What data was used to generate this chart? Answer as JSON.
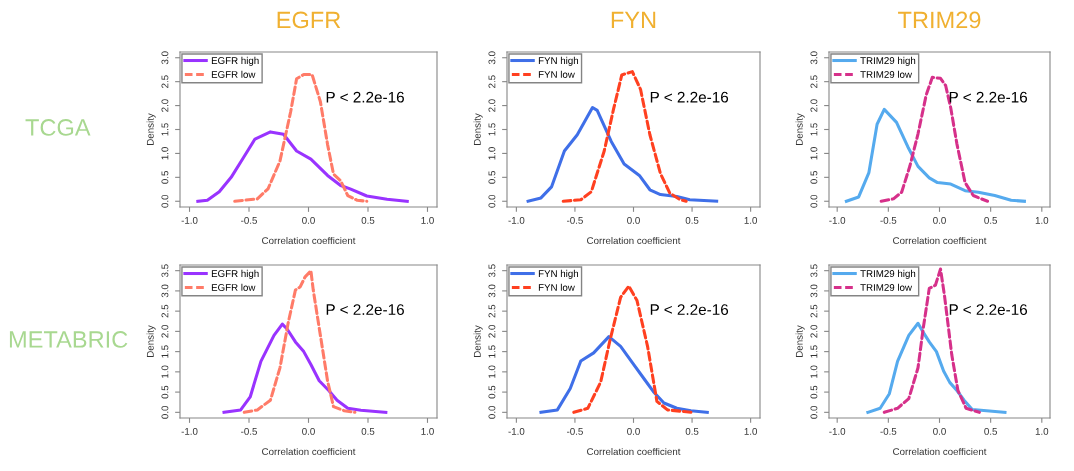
{
  "chart_data": [
    {
      "type": "line",
      "title": "EGFR",
      "xlabel": "Correlation coefficient",
      "ylabel": "Density",
      "annotations": [
        "P < 2.2e-16",
        "TCGA"
      ],
      "legend": "top left",
      "grid": false,
      "xlim": [
        -1.08,
        1.08
      ],
      "ylim": [
        -0.12,
        3.12
      ],
      "xticks": [
        {
          "value": -1,
          "label": "-1.0"
        },
        {
          "value": -0.5,
          "label": "-0.5"
        },
        {
          "value": 0,
          "label": "0.0"
        },
        {
          "value": 0.5,
          "label": "0.5"
        },
        {
          "value": 1,
          "label": "1.0"
        }
      ],
      "yticks": [
        {
          "value": 0,
          "label": "0.0"
        },
        {
          "value": 0.5,
          "label": "0.5"
        },
        {
          "value": 1,
          "label": "1.0"
        },
        {
          "value": 1.5,
          "label": "1.5"
        },
        {
          "value": 2,
          "label": "2.0"
        },
        {
          "value": 2.5,
          "label": "2.5"
        },
        {
          "value": 3,
          "label": "3.0"
        }
      ],
      "series": [
        {
          "name": "EGFR high",
          "color": "#9933ff",
          "line_style": "solid",
          "x": [
            -0.93,
            -0.85,
            -0.75,
            -0.65,
            -0.55,
            -0.45,
            -0.32,
            -0.21,
            -0.1,
            0.02,
            0.16,
            0.27,
            0.35,
            0.49,
            0.66,
            0.83
          ],
          "values": [
            0,
            0.02,
            0.2,
            0.5,
            0.9,
            1.3,
            1.45,
            1.4,
            1.05,
            0.88,
            0.54,
            0.33,
            0.26,
            0.11,
            0.04,
            0
          ]
        },
        {
          "name": "EGFR low",
          "color": "#ff7b68",
          "line_style": "dashed",
          "x": [
            -0.62,
            -0.43,
            -0.34,
            -0.24,
            -0.15,
            -0.1,
            -0.04,
            0.03,
            0.1,
            0.16,
            0.21,
            0.27,
            0.33,
            0.41,
            0.49
          ],
          "values": [
            0,
            0.05,
            0.26,
            0.84,
            1.87,
            2.56,
            2.65,
            2.65,
            2.08,
            1.19,
            0.57,
            0.43,
            0.12,
            0.02,
            0
          ]
        }
      ]
    },
    {
      "type": "line",
      "title": "FYN",
      "xlabel": "Correlation coefficient",
      "ylabel": "Density",
      "annotations": [
        "P < 2.2e-16"
      ],
      "legend": "top left",
      "grid": false,
      "xlim": [
        -1.08,
        1.08
      ],
      "ylim": [
        -0.12,
        3.12
      ],
      "xticks": [
        {
          "value": -1,
          "label": "-1.0"
        },
        {
          "value": -0.5,
          "label": "-0.5"
        },
        {
          "value": 0,
          "label": "0.0"
        },
        {
          "value": 0.5,
          "label": "0.5"
        },
        {
          "value": 1,
          "label": "1.0"
        }
      ],
      "yticks": [
        {
          "value": 0,
          "label": "0.0"
        },
        {
          "value": 0.5,
          "label": "0.5"
        },
        {
          "value": 1,
          "label": "1.0"
        },
        {
          "value": 1.5,
          "label": "1.5"
        },
        {
          "value": 2,
          "label": "2.0"
        },
        {
          "value": 2.5,
          "label": "2.5"
        },
        {
          "value": 3,
          "label": "3.0"
        }
      ],
      "series": [
        {
          "name": "FYN high",
          "color": "#3f6fe8",
          "line_style": "solid",
          "x": [
            -0.9,
            -0.79,
            -0.7,
            -0.59,
            -0.48,
            -0.35,
            -0.31,
            -0.19,
            -0.08,
            0.05,
            0.14,
            0.23,
            0.37,
            0.48,
            0.71
          ],
          "values": [
            0,
            0.07,
            0.3,
            1.05,
            1.39,
            1.96,
            1.9,
            1.25,
            0.78,
            0.54,
            0.24,
            0.14,
            0.1,
            0.03,
            0
          ]
        },
        {
          "name": "FYN low",
          "color": "#ff4020",
          "line_style": "dashed",
          "x": [
            -0.6,
            -0.45,
            -0.36,
            -0.25,
            -0.17,
            -0.1,
            -0.01,
            0.06,
            0.14,
            0.23,
            0.31,
            0.4,
            0.45
          ],
          "values": [
            0,
            0.03,
            0.2,
            1.05,
            1.93,
            2.64,
            2.71,
            2.34,
            1.39,
            0.58,
            0.17,
            0.03,
            0
          ]
        }
      ]
    },
    {
      "type": "line",
      "title": "TRIM29",
      "xlabel": "Correlation coefficient",
      "ylabel": "Density",
      "annotations": [
        "P < 2.2e-16"
      ],
      "legend": "top left",
      "grid": false,
      "xlim": [
        -1.08,
        1.08
      ],
      "ylim": [
        -0.12,
        3.12
      ],
      "xticks": [
        {
          "value": -1,
          "label": "-1.0"
        },
        {
          "value": -0.5,
          "label": "-0.5"
        },
        {
          "value": 0,
          "label": "0.0"
        },
        {
          "value": 0.5,
          "label": "0.5"
        },
        {
          "value": 1,
          "label": "1.0"
        }
      ],
      "yticks": [
        {
          "value": 0,
          "label": "0.0"
        },
        {
          "value": 0.5,
          "label": "0.5"
        },
        {
          "value": 1,
          "label": "1.0"
        },
        {
          "value": 1.5,
          "label": "1.5"
        },
        {
          "value": 2,
          "label": "2.0"
        },
        {
          "value": 2.5,
          "label": "2.5"
        },
        {
          "value": 3,
          "label": "3.0"
        }
      ],
      "series": [
        {
          "name": "TRIM29 high",
          "color": "#55aaee",
          "line_style": "solid",
          "x": [
            -0.91,
            -0.79,
            -0.69,
            -0.61,
            -0.54,
            -0.42,
            -0.31,
            -0.21,
            -0.1,
            -0.02,
            0.11,
            0.25,
            0.38,
            0.54,
            0.7,
            0.83
          ],
          "values": [
            0,
            0.09,
            0.6,
            1.61,
            1.92,
            1.65,
            1.14,
            0.73,
            0.49,
            0.39,
            0.36,
            0.22,
            0.19,
            0.12,
            0.02,
            0
          ]
        },
        {
          "name": "TRIM29 low",
          "color": "#d6308a",
          "line_style": "dashed",
          "x": [
            -0.57,
            -0.45,
            -0.37,
            -0.29,
            -0.21,
            -0.13,
            -0.07,
            0.01,
            0.06,
            0.11,
            0.17,
            0.25,
            0.33,
            0.41,
            0.47
          ],
          "values": [
            0,
            0.05,
            0.19,
            0.73,
            1.41,
            2.22,
            2.59,
            2.57,
            2.42,
            1.95,
            1.2,
            0.39,
            0.12,
            0.05,
            0
          ]
        }
      ]
    },
    {
      "type": "line",
      "xlabel": "Correlation coefficient",
      "ylabel": "Density",
      "annotations": [
        "P < 2.2e-16",
        "METABRIC"
      ],
      "legend": "top left",
      "grid": false,
      "xlim": [
        -1.08,
        1.08
      ],
      "ylim": [
        -0.14,
        3.64
      ],
      "xticks": [
        {
          "value": -1,
          "label": "-1.0"
        },
        {
          "value": -0.5,
          "label": "-0.5"
        },
        {
          "value": 0,
          "label": "0.0"
        },
        {
          "value": 0.5,
          "label": "0.5"
        },
        {
          "value": 1,
          "label": "1.0"
        }
      ],
      "yticks": [
        {
          "value": 0,
          "label": "0.0"
        },
        {
          "value": 0.5,
          "label": "0.5"
        },
        {
          "value": 1,
          "label": "1.0"
        },
        {
          "value": 1.5,
          "label": "1.5"
        },
        {
          "value": 2,
          "label": "2.0"
        },
        {
          "value": 2.5,
          "label": "2.5"
        },
        {
          "value": 3,
          "label": "3.0"
        },
        {
          "value": 3.5,
          "label": "3.5"
        }
      ],
      "series": [
        {
          "name": "EGFR high",
          "color": "#9933ff",
          "line_style": "solid",
          "x": [
            -0.71,
            -0.57,
            -0.49,
            -0.4,
            -0.29,
            -0.22,
            -0.18,
            -0.11,
            -0.04,
            0.02,
            0.09,
            0.17,
            0.24,
            0.33,
            0.44,
            0.65
          ],
          "values": [
            0,
            0.06,
            0.38,
            1.26,
            1.9,
            2.18,
            2.06,
            1.74,
            1.5,
            1.18,
            0.78,
            0.54,
            0.3,
            0.1,
            0.05,
            0
          ]
        },
        {
          "name": "EGFR low",
          "color": "#ff7b68",
          "line_style": "dashed",
          "x": [
            -0.54,
            -0.43,
            -0.32,
            -0.24,
            -0.17,
            -0.11,
            -0.07,
            -0.03,
            0.02,
            0.04,
            0.1,
            0.16,
            0.21,
            0.3,
            0.39
          ],
          "values": [
            0,
            0.06,
            0.3,
            1.1,
            2.22,
            3.02,
            3.1,
            3.34,
            3.5,
            3.02,
            1.9,
            0.78,
            0.14,
            0.04,
            0
          ]
        }
      ]
    },
    {
      "type": "line",
      "xlabel": "Correlation coefficient",
      "ylabel": "Density",
      "annotations": [
        "P < 2.2e-16"
      ],
      "legend": "top left",
      "grid": false,
      "xlim": [
        -1.08,
        1.08
      ],
      "ylim": [
        -0.14,
        3.64
      ],
      "xticks": [
        {
          "value": -1,
          "label": "-1.0"
        },
        {
          "value": -0.5,
          "label": "-0.5"
        },
        {
          "value": 0,
          "label": "0.0"
        },
        {
          "value": 0.5,
          "label": "0.5"
        },
        {
          "value": 1,
          "label": "1.0"
        }
      ],
      "yticks": [
        {
          "value": 0,
          "label": "0.0"
        },
        {
          "value": 0.5,
          "label": "0.5"
        },
        {
          "value": 1,
          "label": "1.0"
        },
        {
          "value": 1.5,
          "label": "1.5"
        },
        {
          "value": 2,
          "label": "2.0"
        },
        {
          "value": 2.5,
          "label": "2.5"
        },
        {
          "value": 3,
          "label": "3.0"
        },
        {
          "value": 3.5,
          "label": "3.5"
        }
      ],
      "series": [
        {
          "name": "FYN high",
          "color": "#3f6fe8",
          "line_style": "solid",
          "x": [
            -0.79,
            -0.65,
            -0.54,
            -0.45,
            -0.34,
            -0.21,
            -0.11,
            -0.01,
            0.09,
            0.17,
            0.26,
            0.37,
            0.49,
            0.63
          ],
          "values": [
            0,
            0.06,
            0.59,
            1.27,
            1.47,
            1.87,
            1.63,
            1.23,
            0.83,
            0.51,
            0.23,
            0.1,
            0.04,
            0
          ]
        },
        {
          "name": "FYN low",
          "color": "#ff4020",
          "line_style": "dashed",
          "x": [
            -0.51,
            -0.39,
            -0.28,
            -0.2,
            -0.11,
            -0.04,
            0.03,
            0.12,
            0.2,
            0.29,
            0.43,
            0.49
          ],
          "values": [
            0,
            0.1,
            0.75,
            1.79,
            2.84,
            3.12,
            2.76,
            1.63,
            0.27,
            0.06,
            0.02,
            0
          ]
        }
      ]
    },
    {
      "type": "line",
      "xlabel": "Correlation coefficient",
      "ylabel": "Density",
      "annotations": [
        "P < 2.2e-16"
      ],
      "legend": "top left",
      "grid": false,
      "xlim": [
        -1.08,
        1.08
      ],
      "ylim": [
        -0.14,
        3.64
      ],
      "xticks": [
        {
          "value": -1,
          "label": "-1.0"
        },
        {
          "value": -0.5,
          "label": "-0.5"
        },
        {
          "value": 0,
          "label": "0.0"
        },
        {
          "value": 0.5,
          "label": "0.5"
        },
        {
          "value": 1,
          "label": "1.0"
        }
      ],
      "yticks": [
        {
          "value": 0,
          "label": "0.0"
        },
        {
          "value": 0.5,
          "label": "0.5"
        },
        {
          "value": 1,
          "label": "1.0"
        },
        {
          "value": 1.5,
          "label": "1.5"
        },
        {
          "value": 2,
          "label": "2.0"
        },
        {
          "value": 2.5,
          "label": "2.5"
        },
        {
          "value": 3,
          "label": "3.0"
        },
        {
          "value": 3.5,
          "label": "3.5"
        }
      ],
      "series": [
        {
          "name": "TRIM29 high",
          "color": "#55aaee",
          "line_style": "solid",
          "x": [
            -0.7,
            -0.58,
            -0.49,
            -0.41,
            -0.3,
            -0.21,
            -0.16,
            -0.1,
            -0.03,
            0.04,
            0.1,
            0.17,
            0.24,
            0.32,
            0.46,
            0.64
          ],
          "values": [
            0,
            0.1,
            0.46,
            1.26,
            1.9,
            2.2,
            1.98,
            1.74,
            1.5,
            1.02,
            0.74,
            0.54,
            0.3,
            0.07,
            0.04,
            0
          ]
        },
        {
          "name": "TRIM29 low",
          "color": "#d6308a",
          "line_style": "dashed",
          "x": [
            -0.54,
            -0.41,
            -0.3,
            -0.21,
            -0.16,
            -0.1,
            -0.04,
            0.01,
            0.05,
            0.12,
            0.18,
            0.26,
            0.39
          ],
          "values": [
            0,
            0.1,
            0.34,
            1.1,
            2.06,
            3.06,
            3.14,
            3.54,
            2.86,
            1.42,
            0.54,
            0.1,
            0
          ]
        }
      ]
    }
  ]
}
